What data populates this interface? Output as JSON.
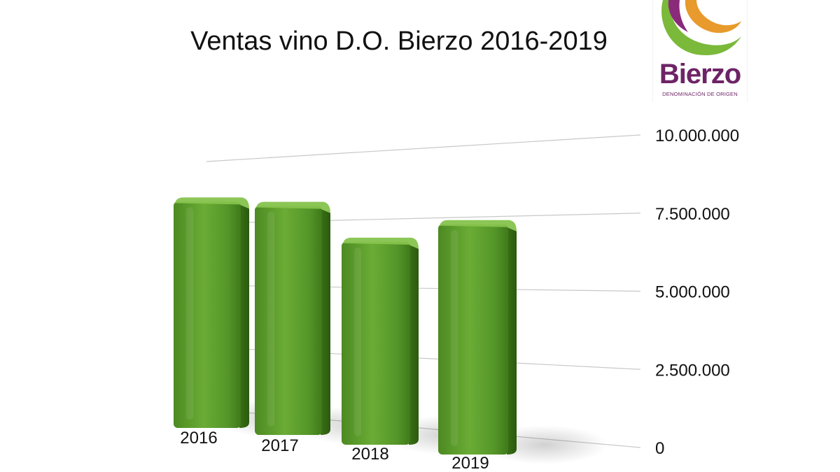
{
  "chart_data": {
    "type": "bar",
    "title": "Ventas vino D.O. Bierzo 2016-2019",
    "xlabel": "",
    "ylabel": "",
    "categories": [
      "2016",
      "2017",
      "2018",
      "2019"
    ],
    "values": [
      8700000,
      8800000,
      7800000,
      8850000
    ],
    "ylim": [
      0,
      10000000
    ],
    "yticks": [
      0,
      2500000,
      5000000,
      7500000,
      10000000
    ],
    "ytick_labels": [
      "0",
      "2.500.000",
      "5.000.000",
      "7.500.000",
      "10.000.000"
    ],
    "grid": true,
    "legend": "none",
    "colors": {
      "bar": "#5a9a2c",
      "bar_dark": "#2f6212",
      "bar_light": "#86c34d",
      "grid": "#c8c8c8",
      "text": "#111111"
    }
  },
  "logo": {
    "name": "Bierzo",
    "subtitle": "DENOMINACIÓN DE ORIGEN",
    "colors": {
      "purple": "#8a2a7a",
      "orange": "#e89a2c",
      "green": "#7ab93a",
      "text": "#6d2466"
    }
  }
}
